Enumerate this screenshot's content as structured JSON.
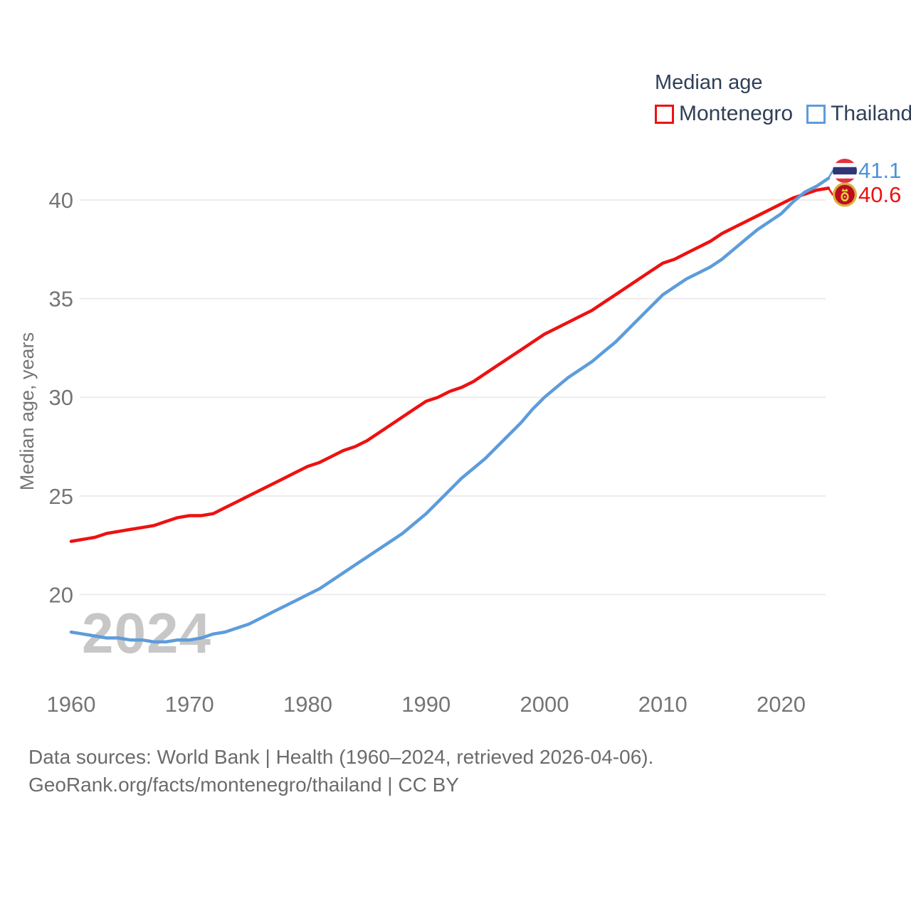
{
  "legend": {
    "title": "Median age",
    "series": [
      {
        "label": "Montenegro",
        "color": "#ee1111"
      },
      {
        "label": "Thailand",
        "color": "#5d9cdb"
      }
    ]
  },
  "end_labels": [
    {
      "series": "Thailand",
      "value": "41.1",
      "color": "#4a93dd",
      "flag": "thailand-flag"
    },
    {
      "series": "Montenegro",
      "value": "40.6",
      "color": "#ee1111",
      "flag": "montenegro-flag"
    }
  ],
  "watermark": "2024",
  "y_axis": {
    "title": "Median age, years",
    "ticks": [
      20,
      25,
      30,
      35,
      40
    ]
  },
  "x_axis": {
    "ticks": [
      1960,
      1970,
      1980,
      1990,
      2000,
      2010,
      2020
    ]
  },
  "footer": {
    "line1": "Data sources: World Bank | Health (1960–2024, retrieved 2026-04-06).",
    "line2": "GeoRank.org/facts/montenegro/thailand | CC BY"
  },
  "chart_data": {
    "type": "line",
    "title": "Median age",
    "xlabel": "",
    "ylabel": "Median age, years",
    "xlim": [
      1960,
      2024
    ],
    "ylim": [
      17,
      42.5
    ],
    "grid": "horizontal",
    "legend_position": "top-right",
    "x": [
      1960,
      1961,
      1962,
      1963,
      1964,
      1965,
      1966,
      1967,
      1968,
      1969,
      1970,
      1971,
      1972,
      1973,
      1974,
      1975,
      1976,
      1977,
      1978,
      1979,
      1980,
      1981,
      1982,
      1983,
      1984,
      1985,
      1986,
      1987,
      1988,
      1989,
      1990,
      1991,
      1992,
      1993,
      1994,
      1995,
      1996,
      1997,
      1998,
      1999,
      2000,
      2001,
      2002,
      2003,
      2004,
      2005,
      2006,
      2007,
      2008,
      2009,
      2010,
      2011,
      2012,
      2013,
      2014,
      2015,
      2016,
      2017,
      2018,
      2019,
      2020,
      2021,
      2022,
      2023,
      2024
    ],
    "series": [
      {
        "name": "Montenegro",
        "color": "#ee1111",
        "end_value": 40.6,
        "values": [
          22.7,
          22.8,
          22.9,
          23.1,
          23.2,
          23.3,
          23.4,
          23.5,
          23.7,
          23.9,
          24.0,
          24.0,
          24.1,
          24.4,
          24.7,
          25.0,
          25.3,
          25.6,
          25.9,
          26.2,
          26.5,
          26.7,
          27.0,
          27.3,
          27.5,
          27.8,
          28.2,
          28.6,
          29.0,
          29.4,
          29.8,
          30.0,
          30.3,
          30.5,
          30.8,
          31.2,
          31.6,
          32.0,
          32.4,
          32.8,
          33.2,
          33.5,
          33.8,
          34.1,
          34.4,
          34.8,
          35.2,
          35.6,
          36.0,
          36.4,
          36.8,
          37.0,
          37.3,
          37.6,
          37.9,
          38.3,
          38.6,
          38.9,
          39.2,
          39.5,
          39.8,
          40.1,
          40.3,
          40.5,
          40.6
        ]
      },
      {
        "name": "Thailand",
        "color": "#5d9cdb",
        "end_value": 41.1,
        "values": [
          18.1,
          18.0,
          17.9,
          17.8,
          17.8,
          17.7,
          17.7,
          17.6,
          17.6,
          17.7,
          17.7,
          17.8,
          18.0,
          18.1,
          18.3,
          18.5,
          18.8,
          19.1,
          19.4,
          19.7,
          20.0,
          20.3,
          20.7,
          21.1,
          21.5,
          21.9,
          22.3,
          22.7,
          23.1,
          23.6,
          24.1,
          24.7,
          25.3,
          25.9,
          26.4,
          26.9,
          27.5,
          28.1,
          28.7,
          29.4,
          30.0,
          30.5,
          31.0,
          31.4,
          31.8,
          32.3,
          32.8,
          33.4,
          34.0,
          34.6,
          35.2,
          35.6,
          36.0,
          36.3,
          36.6,
          37.0,
          37.5,
          38.0,
          38.5,
          38.9,
          39.3,
          39.9,
          40.4,
          40.7,
          41.1
        ]
      }
    ]
  }
}
